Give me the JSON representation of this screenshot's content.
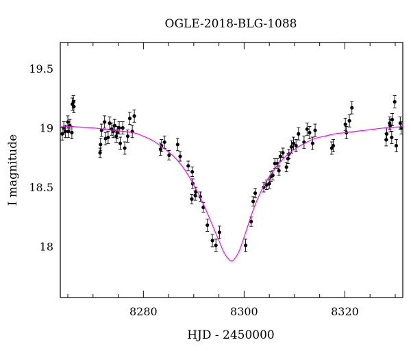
{
  "chart_data": {
    "type": "scatter",
    "title": "OGLE-2018-BLG-1088",
    "xlabel": "HJD - 2450000",
    "ylabel": "I magnitude",
    "xlim": [
      8263.5,
      8331.5
    ],
    "ylim": [
      19.72,
      17.57
    ],
    "y_inverted": true,
    "x_ticks": [
      8280,
      8300,
      8320
    ],
    "y_ticks": [
      18,
      18.5,
      19,
      19.5
    ],
    "x_tick_labels": [
      "8280",
      "8300",
      "8320"
    ],
    "y_tick_labels": [
      "18",
      "18.5",
      "19",
      "19.5"
    ],
    "grid": false,
    "model_color": "#ff00ff",
    "point_color": "#000000",
    "model_curve": {
      "x": [
        8263.5,
        8266,
        8270,
        8274,
        8278,
        8280,
        8282,
        8284,
        8286,
        8288,
        8290,
        8292,
        8294,
        8295,
        8296,
        8297,
        8297.5,
        8298,
        8299,
        8300,
        8302,
        8304,
        8306,
        8308,
        8310,
        8312,
        8314,
        8316,
        8318,
        8320,
        8324,
        8328,
        8331.5
      ],
      "y": [
        19.01,
        19.01,
        19.0,
        18.98,
        18.96,
        18.93,
        18.89,
        18.83,
        18.76,
        18.66,
        18.52,
        18.35,
        18.15,
        18.05,
        17.95,
        17.89,
        17.88,
        17.89,
        17.96,
        18.08,
        18.33,
        18.52,
        18.65,
        18.75,
        18.82,
        18.87,
        18.91,
        18.93,
        18.95,
        18.96,
        18.98,
        19.0,
        19.01
      ]
    },
    "series": [
      {
        "x": [
          8263.9,
          8264.2,
          8264.5,
          8265.0,
          8265.1,
          8265.4,
          8265.8,
          8265.9,
          8266.1,
          8266.2,
          8271.4,
          8271.5,
          8271.7,
          8272.3,
          8272.5,
          8273.0,
          8273.3,
          8273.7,
          8274.0,
          8274.3,
          8274.6,
          8274.8,
          8275.2,
          8275.4,
          8275.9,
          8276.3,
          8276.9,
          8277.3,
          8277.8,
          8278.2,
          8283.4,
          8283.6,
          8284.2,
          8285.1,
          8286.8,
          8287.3,
          8288.9,
          8289.6,
          8289.7,
          8289.8,
          8290.3,
          8290.4,
          8291.3,
          8291.9,
          8292.7,
          8293.7,
          8294.4,
          8295.1,
          8300.3,
          8301.4,
          8301.8,
          8302.2,
          8303.9,
          8304.5,
          8305.0,
          8305.3,
          8305.7,
          8306.1,
          8306.6,
          8306.9,
          8307.2,
          8307.7,
          8308.4,
          8308.7,
          8308.9,
          8309.4,
          8309.8,
          8310.3,
          8310.8,
          8311.9,
          8312.5,
          8313.0,
          8313.6,
          8314.1,
          8317.4,
          8317.7,
          8320.1,
          8320.3,
          8320.9,
          8321.4,
          8328.2,
          8328.3,
          8328.9,
          8329.0,
          8329.3,
          8329.4,
          8329.9,
          8330.2,
          8331.0,
          8331.2
        ],
        "y": [
          18.95,
          19.0,
          18.97,
          19.05,
          18.97,
          19.02,
          18.96,
          19.2,
          19.22,
          19.18,
          18.79,
          18.86,
          18.98,
          19.05,
          18.91,
          18.92,
          19.04,
          18.99,
          18.97,
          19.02,
          18.93,
          18.96,
          19.0,
          18.87,
          19.0,
          18.83,
          18.93,
          19.08,
          18.97,
          19.1,
          18.82,
          18.85,
          18.88,
          18.77,
          18.86,
          18.76,
          18.68,
          18.4,
          18.63,
          18.53,
          18.43,
          18.46,
          18.42,
          18.33,
          18.18,
          18.05,
          18.01,
          18.12,
          18.01,
          18.21,
          18.38,
          18.45,
          18.5,
          18.52,
          18.53,
          18.59,
          18.6,
          18.7,
          18.7,
          18.64,
          18.76,
          18.79,
          18.67,
          18.74,
          18.78,
          18.84,
          18.87,
          18.85,
          18.95,
          18.88,
          18.99,
          18.96,
          18.87,
          18.98,
          18.83,
          18.85,
          19.03,
          18.96,
          19.06,
          19.17,
          18.9,
          18.95,
          19.04,
          19.02,
          18.92,
          19.07,
          19.22,
          18.85,
          19.04,
          19.0
        ]
      }
    ]
  }
}
